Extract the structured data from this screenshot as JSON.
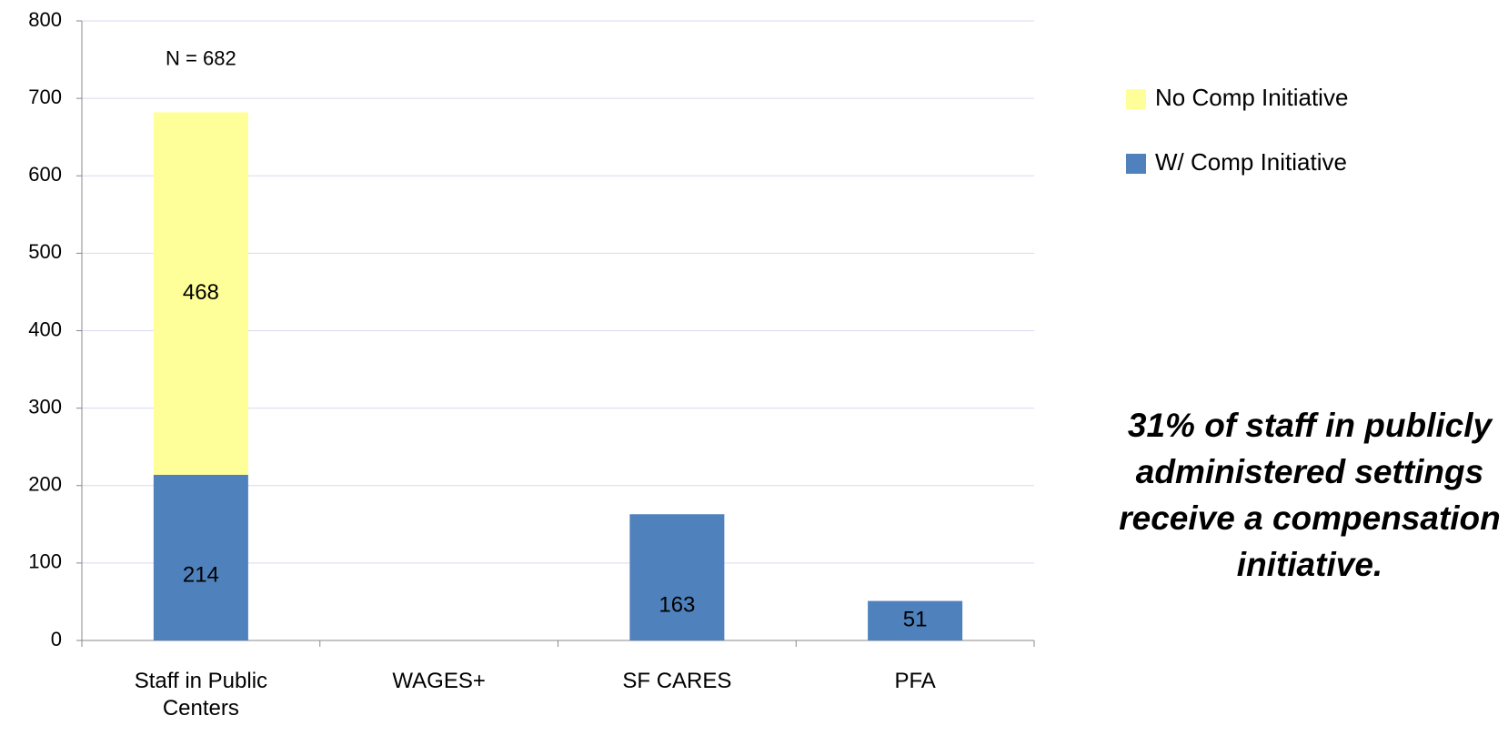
{
  "chart_data": {
    "type": "bar",
    "stacked": true,
    "categories": [
      "Staff in Public Centers",
      "WAGES+",
      "SF CARES",
      "PFA"
    ],
    "series": [
      {
        "name": "W/ Comp Initiative",
        "color": "#4f81bd",
        "values": [
          214,
          null,
          163,
          51
        ]
      },
      {
        "name": "No Comp Initiative",
        "color": "#ffff99",
        "values": [
          468,
          null,
          null,
          null
        ]
      }
    ],
    "ylim": [
      0,
      800
    ],
    "yticks": [
      0,
      100,
      200,
      300,
      400,
      500,
      600,
      700,
      800
    ],
    "grid": true,
    "annotations": [
      "N = 682",
      "31% of staff in publicly administered settings receive a compensation initiative."
    ]
  }
}
